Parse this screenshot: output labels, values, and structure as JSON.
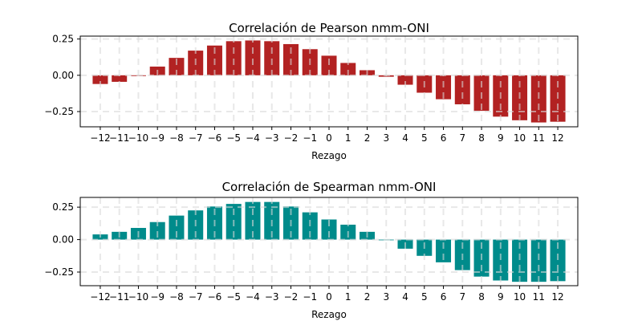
{
  "chart_data": [
    {
      "type": "bar",
      "title": "Correlación de Pearson nmm-ONI",
      "xlabel": "Rezago",
      "ylabel": "",
      "categories": [
        -12,
        -11,
        -10,
        -9,
        -8,
        -7,
        -6,
        -5,
        -4,
        -3,
        -2,
        -1,
        0,
        1,
        2,
        3,
        4,
        5,
        6,
        7,
        8,
        9,
        10,
        11,
        12
      ],
      "values": [
        -0.06,
        -0.045,
        -0.005,
        0.06,
        0.12,
        0.17,
        0.205,
        0.235,
        0.24,
        0.235,
        0.215,
        0.18,
        0.135,
        0.085,
        0.035,
        -0.01,
        -0.065,
        -0.12,
        -0.165,
        -0.2,
        -0.245,
        -0.285,
        -0.31,
        -0.325,
        -0.32
      ],
      "color": "#b22222",
      "ylim": [
        -0.355,
        0.27
      ],
      "yticks": [
        0.25,
        0.0,
        -0.25
      ],
      "ytick_labels": [
        "0.25",
        "0.00",
        "−0.25"
      ],
      "xtick_labels": [
        "−12",
        "−11",
        "−10",
        "−9",
        "−8",
        "−7",
        "−6",
        "−5",
        "−4",
        "−3",
        "−2",
        "−1",
        "0",
        "1",
        "2",
        "3",
        "4",
        "5",
        "6",
        "7",
        "8",
        "9",
        "10",
        "11",
        "12"
      ],
      "grid": true
    },
    {
      "type": "bar",
      "title": "Correlación de Spearman nmm-ONI",
      "xlabel": "Rezago",
      "ylabel": "",
      "categories": [
        -12,
        -11,
        -10,
        -9,
        -8,
        -7,
        -6,
        -5,
        -4,
        -3,
        -2,
        -1,
        0,
        1,
        2,
        3,
        4,
        5,
        6,
        7,
        8,
        9,
        10,
        11,
        12
      ],
      "values": [
        0.04,
        0.06,
        0.09,
        0.135,
        0.185,
        0.225,
        0.255,
        0.275,
        0.29,
        0.29,
        0.255,
        0.21,
        0.155,
        0.115,
        0.06,
        -0.005,
        -0.07,
        -0.125,
        -0.175,
        -0.235,
        -0.285,
        -0.315,
        -0.325,
        -0.325,
        -0.32
      ],
      "color": "#008b8b",
      "ylim": [
        -0.355,
        0.325
      ],
      "yticks": [
        0.25,
        0.0,
        -0.25
      ],
      "ytick_labels": [
        "0.25",
        "0.00",
        "−0.25"
      ],
      "xtick_labels": [
        "−12",
        "−11",
        "−10",
        "−9",
        "−8",
        "−7",
        "−6",
        "−5",
        "−4",
        "−3",
        "−2",
        "−1",
        "0",
        "1",
        "2",
        "3",
        "4",
        "5",
        "6",
        "7",
        "8",
        "9",
        "10",
        "11",
        "12"
      ],
      "grid": true
    }
  ]
}
